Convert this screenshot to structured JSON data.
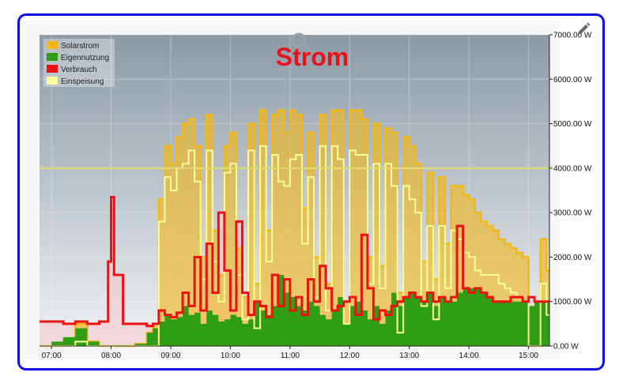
{
  "chart_data": {
    "type": "area",
    "title": "Strom",
    "colors": {
      "title": "#e8121b",
      "Solarstrom": "#f2b817",
      "Eigennutzung": "#2f9e14",
      "Verbrauch": "#ee1111",
      "Einspeisung": "#ffff99",
      "threshold": "#e0dc70",
      "plot_top": "#8c9aa6",
      "plot_bottom": "#f0f2f4"
    },
    "legend": {
      "placement": "top-left",
      "entries": [
        "Solarstrom",
        "Eigennutzung",
        "Verbrauch",
        "Einspeisung"
      ]
    },
    "x_axis": {
      "ticks": [
        "07:00",
        "08:00",
        "09:00",
        "10:00",
        "11:00",
        "12:00",
        "13:00",
        "14:00",
        "15:00"
      ],
      "range_hours": [
        6.8,
        15.35
      ]
    },
    "y_axis": {
      "position": "right",
      "ticks": [
        "0.00 W",
        "1000.00 W",
        "2000.00 W",
        "3000.00 W",
        "4000.00 W",
        "5000.00 W",
        "6000.00 W",
        "7000.00 W"
      ],
      "range": [
        0,
        7000
      ]
    },
    "threshold_line": 4000,
    "grid": true,
    "x": [
      6.8,
      7.0,
      7.2,
      7.4,
      7.6,
      7.8,
      7.95,
      8.0,
      8.05,
      8.2,
      8.4,
      8.6,
      8.7,
      8.8,
      8.9,
      9.0,
      9.1,
      9.2,
      9.3,
      9.4,
      9.5,
      9.6,
      9.7,
      9.8,
      9.9,
      10.0,
      10.1,
      10.2,
      10.3,
      10.4,
      10.5,
      10.6,
      10.7,
      10.8,
      10.9,
      11.0,
      11.1,
      11.2,
      11.3,
      11.4,
      11.5,
      11.6,
      11.7,
      11.8,
      11.9,
      12.0,
      12.1,
      12.2,
      12.3,
      12.4,
      12.5,
      12.6,
      12.7,
      12.8,
      12.9,
      13.0,
      13.1,
      13.2,
      13.3,
      13.4,
      13.5,
      13.6,
      13.7,
      13.8,
      13.9,
      14.0,
      14.1,
      14.2,
      14.3,
      14.4,
      14.5,
      14.6,
      14.7,
      14.8,
      14.9,
      15.0,
      15.1,
      15.2,
      15.3
    ],
    "series": [
      {
        "name": "Solarstrom",
        "values": [
          0,
          0,
          150,
          500,
          100,
          0,
          0,
          0,
          0,
          0,
          50,
          300,
          500,
          3300,
          4500,
          4100,
          4700,
          5000,
          5100,
          4500,
          2000,
          5200,
          2600,
          1600,
          4500,
          4800,
          2200,
          1100,
          5000,
          1400,
          5300,
          2600,
          5200,
          5300,
          4800,
          5300,
          5200,
          3100,
          4800,
          2000,
          5200,
          1400,
          5300,
          5300,
          1000,
          5300,
          5300,
          5100,
          2000,
          5000,
          1800,
          4900,
          4800,
          1200,
          4700,
          4500,
          4100,
          1900,
          3900,
          1500,
          3800,
          2300,
          3600,
          3600,
          3400,
          3300,
          3000,
          2800,
          2700,
          2600,
          2400,
          2300,
          2200,
          2100,
          2000,
          0,
          0,
          2400,
          1700
        ]
      },
      {
        "name": "Eigennutzung",
        "values": [
          0,
          100,
          200,
          400,
          100,
          0,
          0,
          0,
          0,
          0,
          50,
          300,
          400,
          550,
          700,
          600,
          650,
          900,
          700,
          750,
          500,
          800,
          700,
          550,
          600,
          700,
          650,
          500,
          600,
          1000,
          800,
          700,
          900,
          1600,
          1200,
          1100,
          900,
          800,
          1000,
          900,
          700,
          600,
          800,
          1100,
          500,
          900,
          1000,
          800,
          600,
          900,
          500,
          800,
          1200,
          900,
          1100,
          1200,
          1100,
          1000,
          1200,
          900,
          1100,
          1000,
          1000,
          1200,
          1300,
          1300,
          1300,
          1200,
          1100,
          1000,
          1000,
          1000,
          1000,
          1000,
          1000,
          900,
          1000,
          1000,
          1000
        ]
      },
      {
        "name": "Verbrauch",
        "values": [
          550,
          550,
          500,
          550,
          500,
          550,
          1900,
          3350,
          1600,
          500,
          500,
          450,
          500,
          800,
          700,
          650,
          750,
          1200,
          900,
          2000,
          800,
          2300,
          1200,
          3000,
          1700,
          800,
          2800,
          1200,
          700,
          1000,
          900,
          650,
          1600,
          900,
          1500,
          800,
          1100,
          700,
          1500,
          1000,
          1800,
          1300,
          800,
          900,
          1000,
          1100,
          700,
          2500,
          1300,
          600,
          800,
          700,
          900,
          1000,
          1100,
          1200,
          1100,
          1000,
          1200,
          1000,
          1100,
          1000,
          1100,
          2700,
          1300,
          1200,
          1300,
          1200,
          1100,
          1000,
          1000,
          1000,
          1100,
          1100,
          1000,
          1100,
          1000,
          1000,
          1000
        ]
      },
      {
        "name": "Einspeisung",
        "values": [
          0,
          0,
          0,
          100,
          0,
          0,
          0,
          0,
          0,
          0,
          0,
          0,
          0,
          2800,
          3800,
          3500,
          4000,
          4100,
          4400,
          3700,
          1500,
          4400,
          1900,
          1000,
          3900,
          4100,
          1600,
          600,
          4400,
          400,
          4500,
          1900,
          4300,
          3700,
          3600,
          4200,
          4300,
          2300,
          3800,
          1100,
          4500,
          800,
          4500,
          4200,
          500,
          4400,
          4300,
          4300,
          1400,
          4100,
          1300,
          4100,
          3600,
          300,
          3600,
          3300,
          3000,
          900,
          2700,
          600,
          2700,
          1300,
          2600,
          2400,
          2100,
          2000,
          1700,
          1600,
          1600,
          1600,
          1400,
          1300,
          1200,
          1100,
          1000,
          0,
          0,
          1400,
          700
        ]
      }
    ]
  }
}
